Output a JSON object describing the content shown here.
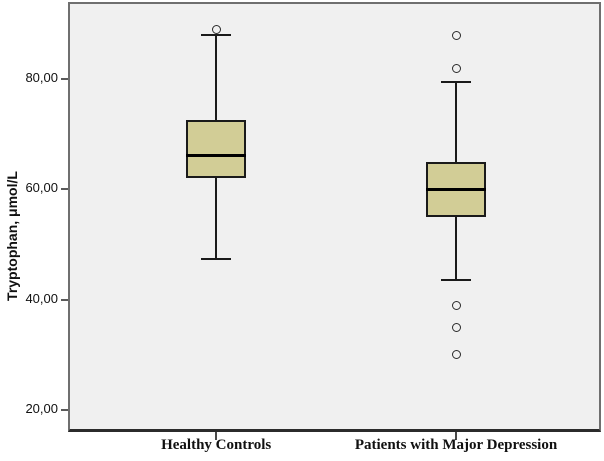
{
  "figure": {
    "y_axis_title": "Tryptophan, μmol/L"
  },
  "chart_data": {
    "type": "boxplot",
    "title": "",
    "xlabel": "",
    "ylabel": "Tryptophan, μmol/L",
    "ylim": [
      16,
      94
    ],
    "grid": false,
    "legend": "none",
    "plot_bg": "#F0F0F0",
    "frame_color": "#6F6F6F",
    "box_fill": "#D2CD96",
    "box_border": "#1A1A1A",
    "median_color": "#000000",
    "yticks": [
      {
        "value": 80,
        "label": "80,00"
      },
      {
        "value": 60,
        "label": "60,00"
      },
      {
        "value": 40,
        "label": "40,00"
      },
      {
        "value": 20,
        "label": "20,00"
      }
    ],
    "categories": [
      "Healthy Controls",
      "Patients with Major Depression"
    ],
    "groups": [
      {
        "label": "Healthy Controls",
        "whisker_low": 47.4,
        "q1": 62.0,
        "median": 66.2,
        "q3": 72.6,
        "whisker_high": 88.0,
        "outliers": [
          89
        ]
      },
      {
        "label": "Patients with Major Depression",
        "whisker_low": 43.5,
        "q1": 55.0,
        "median": 60.0,
        "q3": 65.0,
        "whisker_high": 79.5,
        "outliers": [
          88,
          82,
          39,
          35,
          30
        ]
      }
    ]
  }
}
